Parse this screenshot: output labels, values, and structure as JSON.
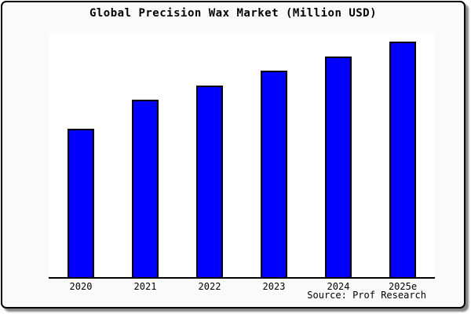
{
  "title": "Global Precision Wax Market (Million USD)",
  "source": "Source: Prof Research",
  "colors": {
    "bar_fill": "#0000ff",
    "bar_border": "#000000",
    "card_background": "#fafafa",
    "plot_background": "#ffffff",
    "axis": "#000000",
    "text": "#000000"
  },
  "chart_data": {
    "type": "bar",
    "title": "Global Precision Wax Market (Million USD)",
    "categories": [
      "2020",
      "2021",
      "2022",
      "2023",
      "2024",
      "2025e"
    ],
    "values": [
      63.0,
      75.3,
      81.5,
      87.7,
      93.8,
      100.0
    ],
    "xlabel": "",
    "ylabel": "",
    "ylim": [
      0,
      103.5
    ],
    "value_units": "relative index (no y-axis labels shown; 2025e = 100)",
    "grid": false,
    "legend": false,
    "y_axis_visible": false,
    "annotation": "Source: Prof Research"
  }
}
